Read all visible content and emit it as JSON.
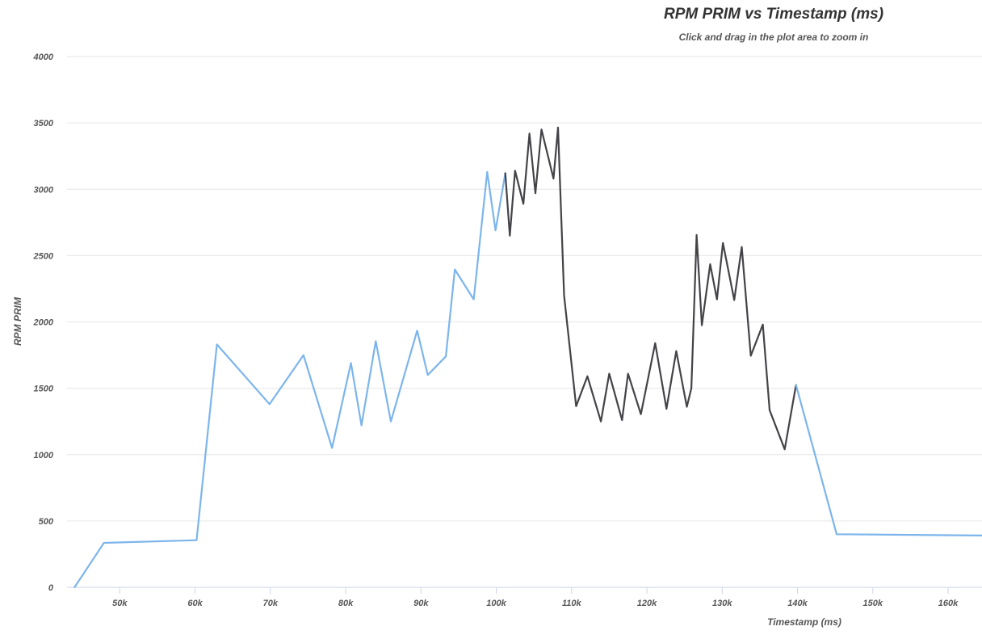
{
  "chart_data": {
    "type": "line",
    "title": "RPM PRIM vs Timestamp (ms)",
    "subtitle": "Click and drag in the plot area to zoom in",
    "xlabel": "Timestamp (ms)",
    "ylabel": "RPM PRIM",
    "xlim": [
      43000,
      164500
    ],
    "ylim": [
      0,
      4000
    ],
    "x_ticks": [
      50000,
      60000,
      70000,
      80000,
      90000,
      100000,
      110000,
      120000,
      130000,
      140000,
      150000,
      160000
    ],
    "x_tick_labels": [
      "50k",
      "60k",
      "70k",
      "80k",
      "90k",
      "100k",
      "110k",
      "120k",
      "130k",
      "140k",
      "150k",
      "160k"
    ],
    "y_ticks": [
      0,
      500,
      1000,
      1500,
      2000,
      2500,
      3000,
      3500,
      4000
    ],
    "y_tick_labels": [
      "0",
      "500",
      "1000",
      "1500",
      "2000",
      "2500",
      "3000",
      "3500",
      "4000"
    ],
    "grid": true,
    "colors": {
      "primary": "#7cb5ec",
      "highlight": "#434348"
    },
    "series": [
      {
        "color": "#7cb5ec",
        "x": [
          44000,
          47900,
          60200,
          62900,
          69900,
          74400,
          78200,
          80700,
          82100,
          84000,
          86000,
          89500,
          90900,
          93300,
          94500,
          97000,
          98800,
          99900,
          101200
        ],
        "values": [
          0,
          335,
          355,
          1830,
          1380,
          1750,
          1050,
          1690,
          1220,
          1855,
          1250,
          1935,
          1600,
          1740,
          2395,
          2170,
          3130,
          2690,
          3120
        ]
      },
      {
        "color": "#434348",
        "x": [
          101200,
          101800,
          102500,
          103600,
          104400,
          105200,
          106000,
          107600,
          108200,
          109000,
          110600,
          112100,
          113900,
          115000,
          116700,
          117500,
          119200,
          121100,
          122600,
          123900,
          125300,
          125900,
          126600,
          127300,
          128400,
          129300,
          130100,
          131600,
          132600,
          133800,
          135400,
          136300,
          138300,
          139800
        ],
        "values": [
          3120,
          2650,
          3140,
          2890,
          3420,
          2970,
          3450,
          3080,
          3465,
          2200,
          1365,
          1590,
          1250,
          1610,
          1260,
          1610,
          1305,
          1840,
          1345,
          1780,
          1360,
          1500,
          2655,
          1975,
          2435,
          2170,
          2595,
          2165,
          2565,
          1745,
          1980,
          1335,
          1040,
          1525
        ]
      },
      {
        "color": "#7cb5ec",
        "x": [
          139800,
          145200,
          164500
        ],
        "values": [
          1525,
          400,
          390
        ]
      }
    ]
  }
}
